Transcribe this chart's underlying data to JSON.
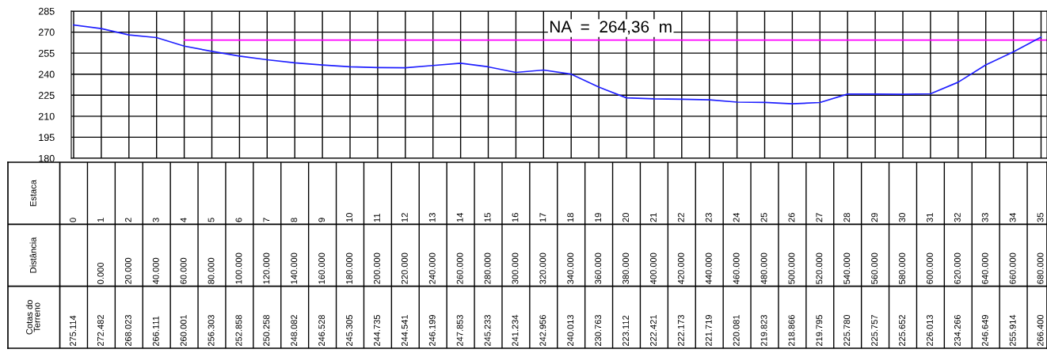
{
  "chart_data": {
    "type": "line",
    "categories": [
      "0",
      "1",
      "2",
      "3",
      "4",
      "5",
      "6",
      "7",
      "8",
      "9",
      "10",
      "11",
      "12",
      "13",
      "14",
      "15",
      "16",
      "17",
      "18",
      "19",
      "20",
      "21",
      "22",
      "23",
      "24",
      "25",
      "26",
      "27",
      "28",
      "29",
      "30",
      "31",
      "32",
      "33",
      "34",
      "35"
    ],
    "series": [
      {
        "color": "#1f1fff",
        "values": [
          275.114,
          272.482,
          268.023,
          266.111,
          260.001,
          256.303,
          252.858,
          250.258,
          248.082,
          246.528,
          245.305,
          244.735,
          244.541,
          246.199,
          247.853,
          245.233,
          241.234,
          242.956,
          240.013,
          230.763,
          223.112,
          222.421,
          222.173,
          221.719,
          220.081,
          219.823,
          218.866,
          219.795,
          225.78,
          225.757,
          225.652,
          226.013,
          234.266,
          246.649,
          255.914,
          266.4
        ],
        "value_labels": [
          "275.114",
          "272.482",
          "268.023",
          "266.111",
          "260.001",
          "256.303",
          "252.858",
          "250.258",
          "248.082",
          "246.528",
          "245.305",
          "244.735",
          "244.541",
          "246.199",
          "247.853",
          "245.233",
          "241.234",
          "242.956",
          "240.013",
          "230.763",
          "223.112",
          "222.421",
          "222.173",
          "221.719",
          "220.081",
          "219.823",
          "218.866",
          "219.795",
          "225.780",
          "225.757",
          "225.652",
          "226.013",
          "234.266",
          "246.649",
          "255.914",
          "266.400"
        ]
      }
    ],
    "ylim": [
      180,
      285
    ],
    "yticks": [
      180,
      195,
      210,
      225,
      240,
      255,
      270,
      285
    ],
    "grid": true,
    "marker": "none",
    "line_style": "solid",
    "ref_lines": [
      {
        "axis": "y",
        "value": 264.36,
        "label": "NA  =  264,36  m",
        "color": "#ff00ff"
      }
    ],
    "annotations": [
      "Estaca",
      "Distância",
      "Cotas do\nTerreno",
      "0.000",
      "20.000",
      "40.000",
      "60.000",
      "80.000",
      "100.000",
      "120.000",
      "140.000",
      "160.000",
      "180.000",
      "200.000",
      "220.000",
      "240.000",
      "260.000",
      "280.000",
      "300.000",
      "320.000",
      "340.000",
      "360.000",
      "380.000",
      "400.000",
      "420.000",
      "440.000",
      "460.000",
      "480.000",
      "500.000",
      "520.000",
      "540.000",
      "560.000",
      "580.000",
      "600.000",
      "620.000",
      "640.000",
      "660.000",
      "680.000"
    ]
  }
}
